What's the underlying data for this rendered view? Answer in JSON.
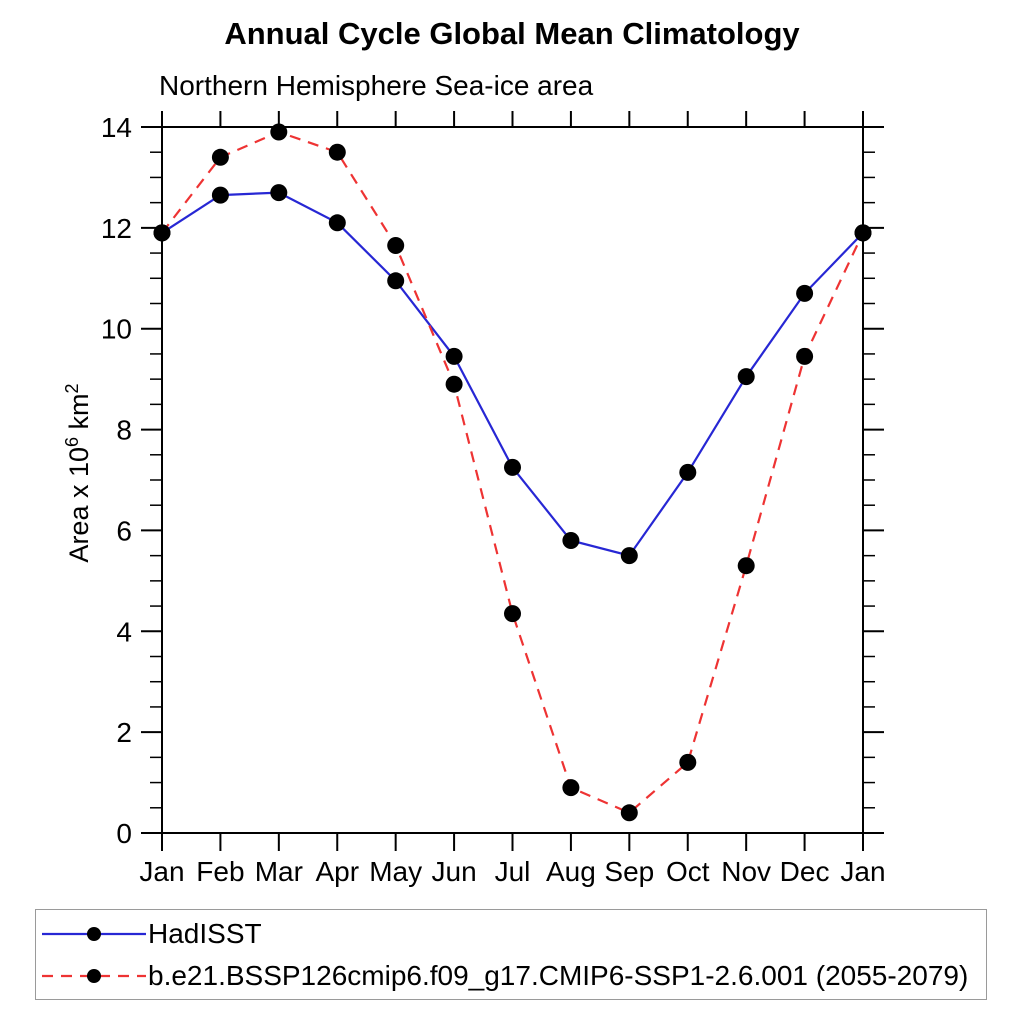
{
  "title": "Annual Cycle Global Mean Climatology",
  "subtitle": "Northern Hemisphere Sea-ice area",
  "y_axis": {
    "label_plain": "Area x 10^6 km^2",
    "label_prefix": "Area x 10",
    "label_sup1": "6",
    "label_mid": " km",
    "label_sup2": "2"
  },
  "chart_data": {
    "type": "line",
    "title": "Annual Cycle Global Mean Climatology",
    "subtitle": "Northern Hemisphere Sea-ice area",
    "xlabel": "",
    "ylabel": "Area x 10^6 km^2",
    "ylim": [
      0,
      14
    ],
    "ytick_step": 2,
    "yminor_step": 0.5,
    "grid": false,
    "legend_position": "bottom-box",
    "axis_color": "#000000",
    "categories": [
      "Jan",
      "Feb",
      "Mar",
      "Apr",
      "May",
      "Jun",
      "Jul",
      "Aug",
      "Sep",
      "Oct",
      "Nov",
      "Dec",
      "Jan"
    ],
    "series": [
      {
        "name": "HadISST",
        "color": "#2727d4",
        "line_style": "solid",
        "marker": "filled-circle",
        "marker_color": "#000000",
        "values": [
          11.9,
          12.65,
          12.7,
          12.1,
          10.95,
          9.45,
          7.25,
          5.8,
          5.5,
          7.15,
          9.05,
          10.7,
          11.9
        ]
      },
      {
        "name": "b.e21.BSSP126cmip6.f09_g17.CMIP6-SSP1-2.6.001 (2055-2079)",
        "color": "#ee3333",
        "line_style": "dashed",
        "marker": "filled-circle",
        "marker_color": "#000000",
        "values": [
          11.9,
          13.4,
          13.9,
          13.5,
          11.65,
          8.9,
          4.35,
          0.9,
          0.4,
          1.4,
          5.3,
          9.45,
          11.9
        ]
      }
    ]
  }
}
